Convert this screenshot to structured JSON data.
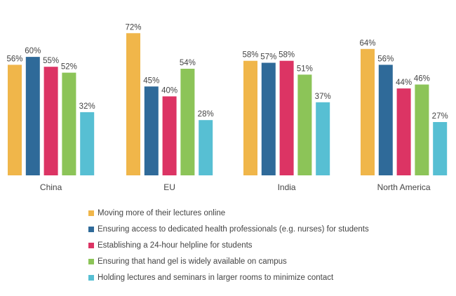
{
  "chart_data": {
    "type": "bar",
    "categories": [
      "China",
      "EU",
      "India",
      "North America"
    ],
    "series": [
      {
        "name": "Moving more of their lectures online",
        "color": "#F0B64A",
        "values": [
          56,
          72,
          58,
          64
        ]
      },
      {
        "name": "Ensuring access to dedicated health professionals (e.g. nurses) for students",
        "color": "#2F6A99",
        "values": [
          60,
          45,
          57,
          56
        ]
      },
      {
        "name": "Establishing a 24-hour helpline for students",
        "color": "#DC3464",
        "values": [
          55,
          40,
          58,
          44
        ]
      },
      {
        "name": "Ensuring that hand gel is widely available on campus",
        "color": "#8CC458",
        "values": [
          52,
          54,
          51,
          46
        ]
      },
      {
        "name": "Holding lectures and seminars in larger rooms to minimize contact",
        "color": "#57BFD3",
        "values": [
          32,
          28,
          37,
          27
        ]
      }
    ],
    "value_suffix": "%",
    "ylim": [
      0,
      72
    ],
    "grid": false,
    "legend_position": "bottom",
    "data_labels": true
  }
}
